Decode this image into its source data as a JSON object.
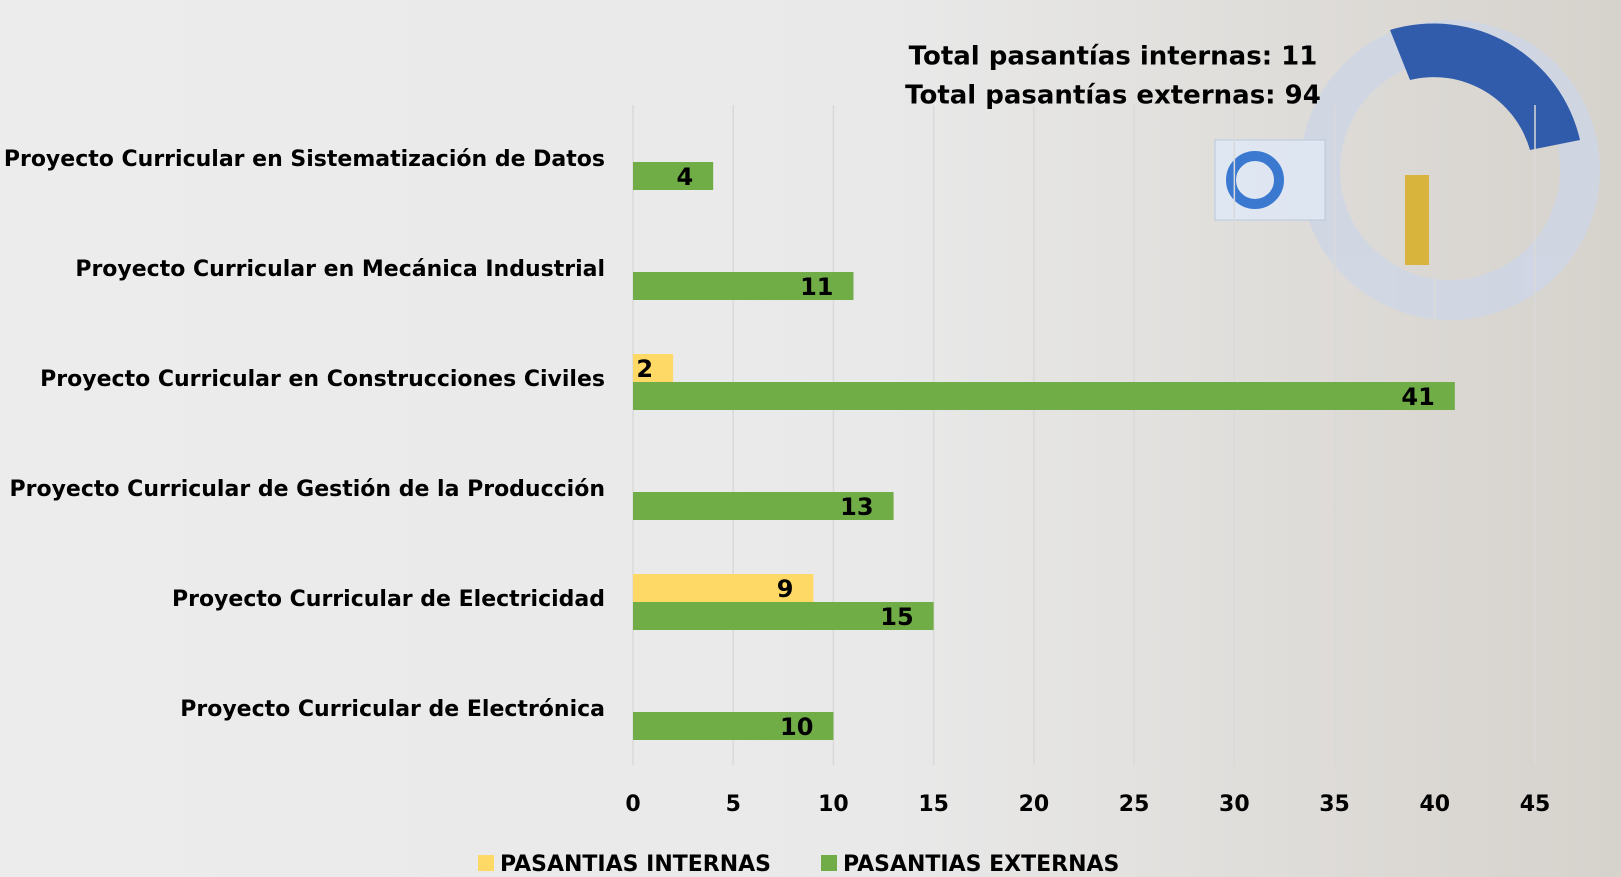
{
  "chart_data": {
    "type": "hbar",
    "annotations": [
      "Total pasantías internas: 11",
      "Total pasantías externas: 94"
    ],
    "categories": [
      "Proyecto Curricular en Sistematización de Datos",
      "Proyecto Curricular en Mecánica Industrial",
      "Proyecto Curricular en Construcciones Civiles",
      "Proyecto Curricular de Gestión de la Producción",
      "Proyecto Curricular de Electricidad",
      "Proyecto Curricular de Electrónica"
    ],
    "series": [
      {
        "name": "PASANTIAS INTERNAS",
        "color": "#ffd966",
        "values": [
          null,
          null,
          2,
          null,
          9,
          null
        ]
      },
      {
        "name": "PASANTIAS EXTERNAS",
        "color": "#70ad47",
        "values": [
          4,
          11,
          41,
          13,
          15,
          10
        ]
      }
    ],
    "xlim": [
      0,
      45
    ],
    "xticks": [
      0,
      5,
      10,
      15,
      20,
      25,
      30,
      35,
      40,
      45
    ],
    "grid": true,
    "legend": "bottom"
  }
}
